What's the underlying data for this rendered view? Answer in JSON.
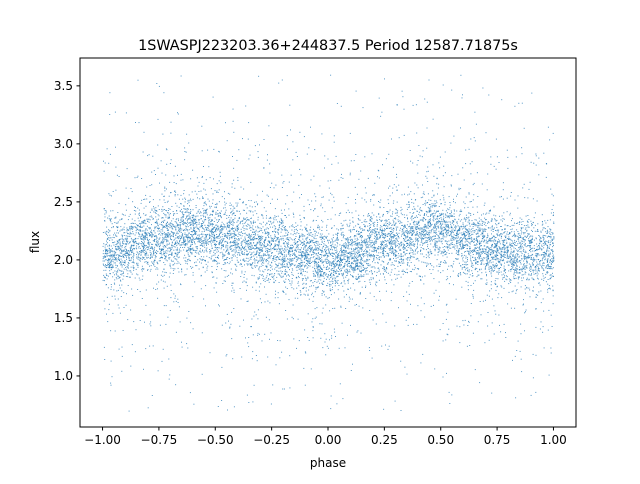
{
  "chart_data": {
    "type": "scatter",
    "title": "1SWASPJ223203.36+244837.5 Period 12587.71875s",
    "xlabel": "phase",
    "ylabel": "flux",
    "xlim": [
      -1.1,
      1.1
    ],
    "ylim": [
      0.56,
      3.74
    ],
    "xticks": [
      -1.0,
      -0.75,
      -0.5,
      -0.25,
      0.0,
      0.25,
      0.5,
      0.75,
      1.0
    ],
    "xtick_labels": [
      "−1.00",
      "−0.75",
      "−0.50",
      "−0.25",
      "0.00",
      "0.25",
      "0.50",
      "0.75",
      "1.00"
    ],
    "yticks": [
      1.0,
      1.5,
      2.0,
      2.5,
      3.0,
      3.5
    ],
    "ytick_labels": [
      "1.0",
      "1.5",
      "2.0",
      "2.5",
      "3.0",
      "3.5"
    ],
    "grid": false,
    "point_color": "#1f77b4",
    "data_x_range": [
      -1.0,
      1.0
    ],
    "data_y_range": [
      0.7,
      3.6
    ],
    "binned_mean": {
      "x": [
        -1.0,
        -0.75,
        -0.55,
        -0.25,
        0.0,
        0.25,
        0.45,
        0.75,
        1.0
      ],
      "y": [
        2.05,
        2.2,
        2.25,
        2.1,
        2.0,
        2.15,
        2.25,
        2.1,
        2.05
      ]
    }
  }
}
